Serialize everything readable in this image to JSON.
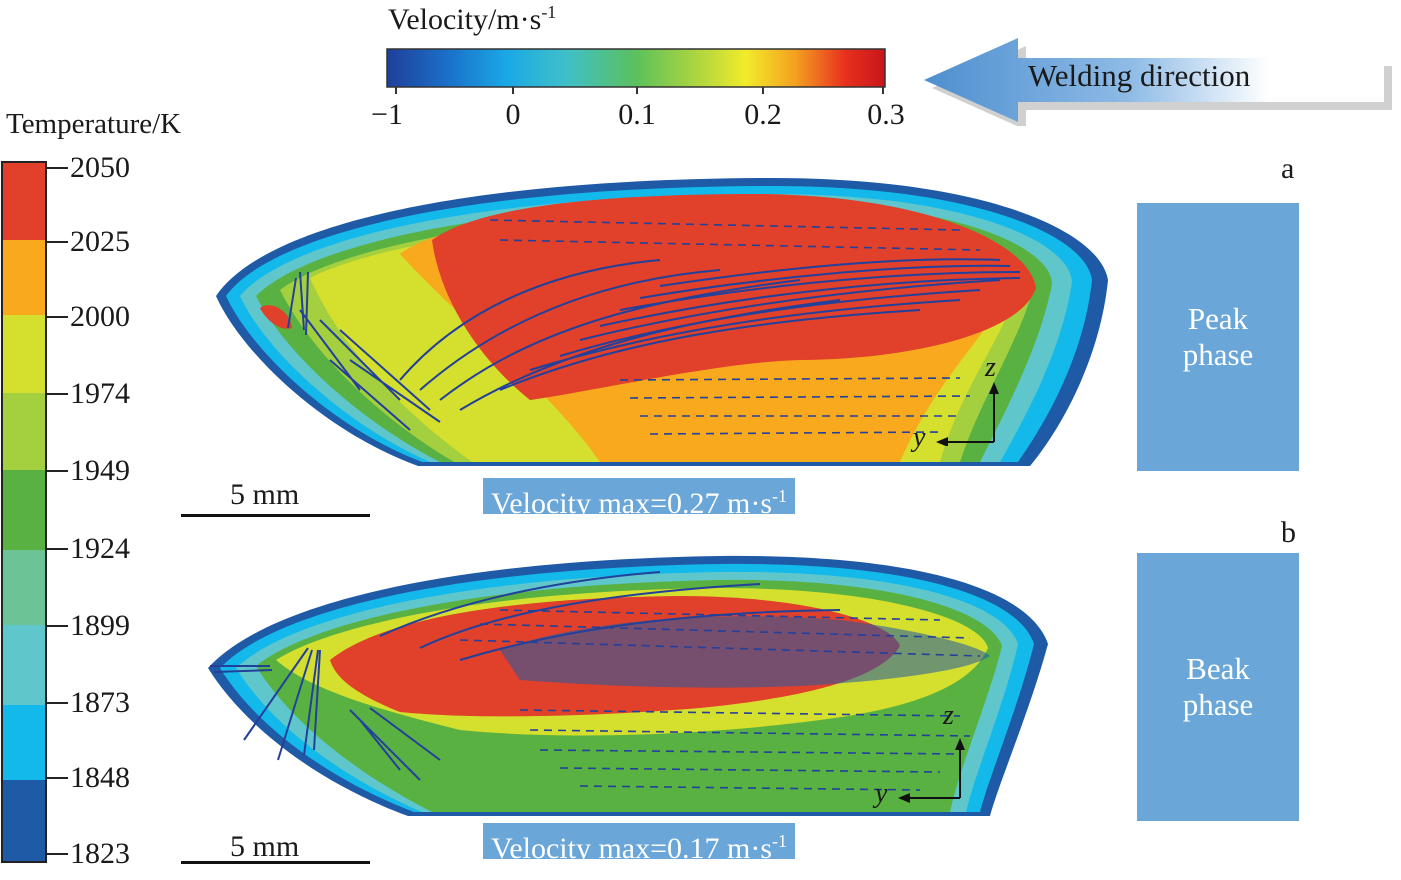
{
  "velocity_legend": {
    "title": "Velocity/m·s",
    "title_exp": "-1",
    "ticks": [
      "−1",
      "0",
      "0.1",
      "0.2",
      "0.3"
    ],
    "colors": [
      "#1f3f9a",
      "#1a86d6",
      "#3fc0c8",
      "#5cc05c",
      "#b9d93b",
      "#f2ec2a",
      "#f4a020",
      "#e8301e",
      "#c8151a"
    ]
  },
  "temperature_legend": {
    "title": "Temperature/K",
    "ticks": [
      "2050",
      "2025",
      "2000",
      "1974",
      "1949",
      "1924",
      "1899",
      "1873",
      "1848",
      "1823"
    ],
    "colors": [
      "#e1402a",
      "#f8a91d",
      "#d4df2e",
      "#a4cf3e",
      "#58b141",
      "#6cc496",
      "#5fc7cc",
      "#13b9ea",
      "#1f5aa6"
    ]
  },
  "welding_direction": {
    "label": "Welding direction",
    "color": "#5f9ad5"
  },
  "panels": [
    {
      "letter": "a",
      "phase": [
        "Peak",
        "phase"
      ],
      "velocity_max": "Velocity max=0.27 m·s",
      "velocity_exp": "-1",
      "scale": "5 mm",
      "axis_z": "z",
      "axis_y": "y"
    },
    {
      "letter": "b",
      "phase": [
        "Beak",
        "phase"
      ],
      "velocity_max": "Velocity max=0.17 m·s",
      "velocity_exp": "-1",
      "scale": "5 mm",
      "axis_z": "z",
      "axis_y": "y"
    }
  ],
  "pool_colors": {
    "outer": "#1f5aa6",
    "cyan": "#13b9ea",
    "teal": "#5fc7cc",
    "mint": "#6cc496",
    "green": "#58b141",
    "lime": "#a4cf3e",
    "yellow": "#d4df2e",
    "orange": "#f8a91d",
    "red": "#e1402a",
    "arrow": "#23409a"
  }
}
